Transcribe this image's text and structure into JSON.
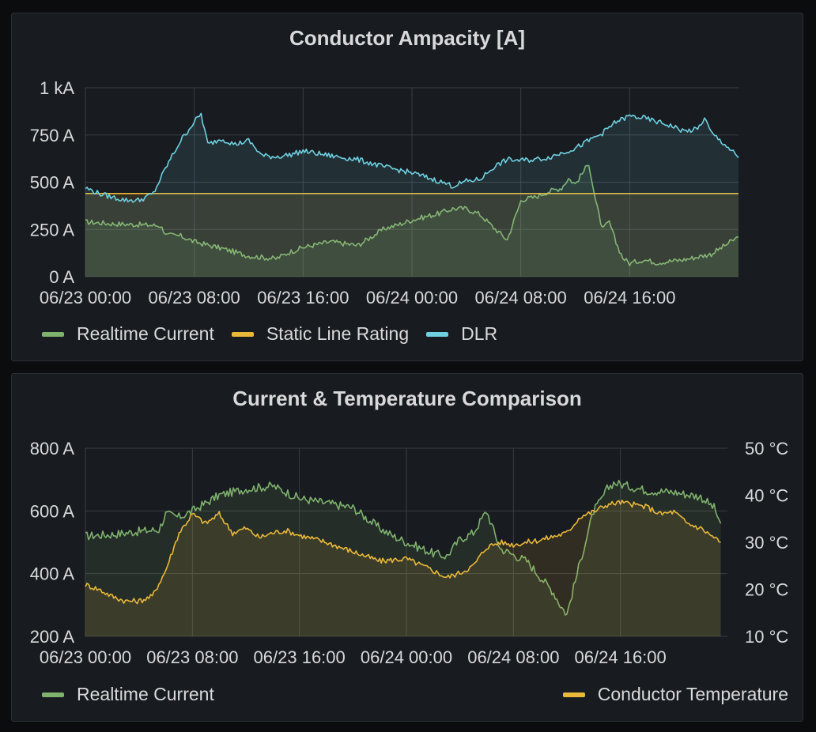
{
  "chart_data": [
    {
      "type": "area",
      "title": "Conductor Ampacity [A]",
      "x_ticks": [
        "06/23 00:00",
        "06/23 08:00",
        "06/23 16:00",
        "06/24 00:00",
        "06/24 08:00",
        "06/24 16:00"
      ],
      "y_ticks": [
        "0 A",
        "250 A",
        "500 A",
        "750 A",
        "1 kA"
      ],
      "x_range_hours": [
        0,
        48
      ],
      "ylim": [
        0,
        1000
      ],
      "grid": true,
      "legend_position": "bottom-left",
      "series": [
        {
          "name": "Realtime Current",
          "color": "#7eb26d",
          "x_hours": [
            0,
            2,
            4,
            5.5,
            6,
            7,
            8,
            10,
            12,
            14,
            15,
            16,
            18,
            20,
            22,
            23,
            24,
            26,
            27,
            28,
            29,
            30,
            31,
            32,
            32.2,
            33,
            34,
            35,
            35.5,
            36,
            37,
            37.5,
            38,
            38.5,
            39,
            39.5,
            40,
            41,
            42,
            44,
            46,
            47,
            48
          ],
          "values": [
            290,
            280,
            275,
            270,
            220,
            215,
            185,
            150,
            110,
            95,
            130,
            155,
            185,
            165,
            255,
            275,
            300,
            335,
            360,
            360,
            330,
            260,
            195,
            400,
            410,
            420,
            450,
            470,
            520,
            490,
            600,
            400,
            250,
            290,
            180,
            100,
            70,
            90,
            75,
            90,
            120,
            165,
            210
          ]
        },
        {
          "name": "Static Line Rating",
          "color": "#eab839",
          "x_hours": [
            0,
            48
          ],
          "values": [
            440,
            440
          ]
        },
        {
          "name": "DLR",
          "color": "#6ed0e0",
          "x_hours": [
            0,
            1,
            2,
            3,
            4,
            5,
            6,
            7,
            8,
            8.5,
            9,
            10,
            11,
            12,
            13,
            14,
            15,
            16,
            18,
            20,
            22,
            24,
            26,
            27,
            28,
            29,
            30,
            31,
            32,
            33,
            34,
            36,
            37,
            38,
            39,
            40,
            41,
            42,
            43,
            44,
            45,
            45.5,
            46,
            47,
            48
          ],
          "values": [
            470,
            440,
            420,
            405,
            405,
            440,
            590,
            720,
            820,
            860,
            700,
            730,
            700,
            720,
            640,
            635,
            645,
            665,
            640,
            620,
            580,
            550,
            505,
            480,
            505,
            515,
            580,
            620,
            615,
            620,
            630,
            680,
            720,
            760,
            820,
            850,
            840,
            820,
            800,
            770,
            780,
            840,
            760,
            700,
            630
          ]
        }
      ]
    },
    {
      "type": "area",
      "title": "Current & Temperature Comparison",
      "x_ticks": [
        "06/23 00:00",
        "06/23 08:00",
        "06/23 16:00",
        "06/24 00:00",
        "06/24 08:00",
        "06/24 16:00"
      ],
      "y_ticks_left": [
        "200 A",
        "400 A",
        "600 A",
        "800 A"
      ],
      "y_ticks_right": [
        "10 °C",
        "20 °C",
        "30 °C",
        "40 °C",
        "50 °C"
      ],
      "x_range_hours": [
        0,
        48
      ],
      "ylim_left": [
        200,
        800
      ],
      "ylim_right": [
        10,
        50
      ],
      "grid": true,
      "legend_position": "bottom",
      "series": [
        {
          "name": "Realtime Current",
          "color": "#7eb26d",
          "axis": "left",
          "x_hours": [
            0,
            2,
            4,
            5.5,
            6,
            7,
            8,
            10,
            12,
            14,
            15,
            16,
            18,
            20,
            22,
            23,
            24,
            26,
            27,
            28,
            29,
            30,
            31,
            32,
            33,
            34,
            35,
            35.5,
            36,
            37,
            37.5,
            38,
            38.5,
            39,
            39.5,
            40,
            41,
            42,
            44,
            46,
            47,
            47.5
          ],
          "values": [
            520,
            525,
            535,
            540,
            590,
            580,
            600,
            650,
            670,
            680,
            660,
            640,
            625,
            610,
            545,
            520,
            500,
            465,
            455,
            510,
            530,
            600,
            480,
            460,
            440,
            390,
            340,
            300,
            270,
            440,
            520,
            600,
            630,
            670,
            690,
            685,
            675,
            665,
            660,
            645,
            610,
            560
          ]
        },
        {
          "name": "Conductor Temperature",
          "color": "#eab839",
          "axis": "right",
          "x_hours": [
            0,
            1,
            2,
            3,
            4,
            5,
            6,
            7,
            8,
            9,
            10,
            11,
            12,
            13,
            14,
            15,
            16,
            18,
            20,
            22,
            24,
            26,
            27,
            28,
            29,
            30,
            31,
            32,
            33,
            34,
            36,
            37,
            38,
            39,
            40,
            41,
            42,
            43,
            44,
            45,
            46,
            47,
            47.5
          ],
          "values": [
            21,
            20,
            18.5,
            17.5,
            17.5,
            18.5,
            24,
            32,
            36,
            34,
            36,
            32,
            33,
            31,
            32,
            32.5,
            31.5,
            30,
            28,
            26,
            26.5,
            24,
            22.5,
            23.5,
            25,
            29,
            30,
            29.5,
            30,
            30.5,
            32,
            35.5,
            36.5,
            38,
            38.5,
            38,
            37.5,
            36,
            36.5,
            34,
            33,
            31,
            30
          ]
        }
      ]
    }
  ]
}
